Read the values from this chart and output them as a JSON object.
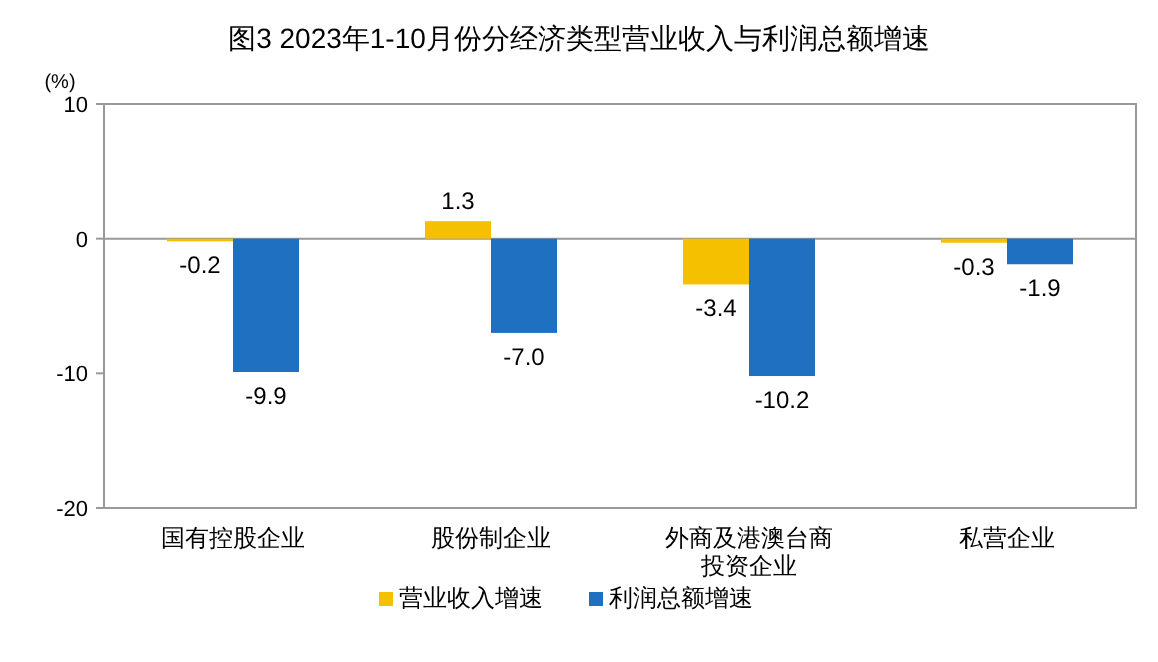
{
  "chart_data": {
    "type": "bar",
    "title": "图3  2023年1-10月份分经济类型营业收入与利润总额增速",
    "ylabel": "(%)",
    "categories": [
      "国有控股企业",
      "股份制企业",
      "外商及港澳台商投资企业",
      "私营企业"
    ],
    "series": [
      {
        "name": "营业收入增速",
        "color": "#f5c000",
        "values": [
          -0.2,
          1.3,
          -3.4,
          -0.3
        ],
        "value_labels": [
          "-0.2",
          "1.3",
          "-3.4",
          "-0.3"
        ]
      },
      {
        "name": "利润总额增速",
        "color": "#1f70c1",
        "values": [
          -9.9,
          -7.0,
          -10.2,
          -1.9
        ],
        "value_labels": [
          "-9.9",
          "-7.0",
          "-10.2",
          "-1.9"
        ]
      }
    ],
    "ylim": [
      -20,
      10
    ],
    "yticks": [
      -20,
      -10,
      0,
      10
    ],
    "legend": "bottom"
  }
}
